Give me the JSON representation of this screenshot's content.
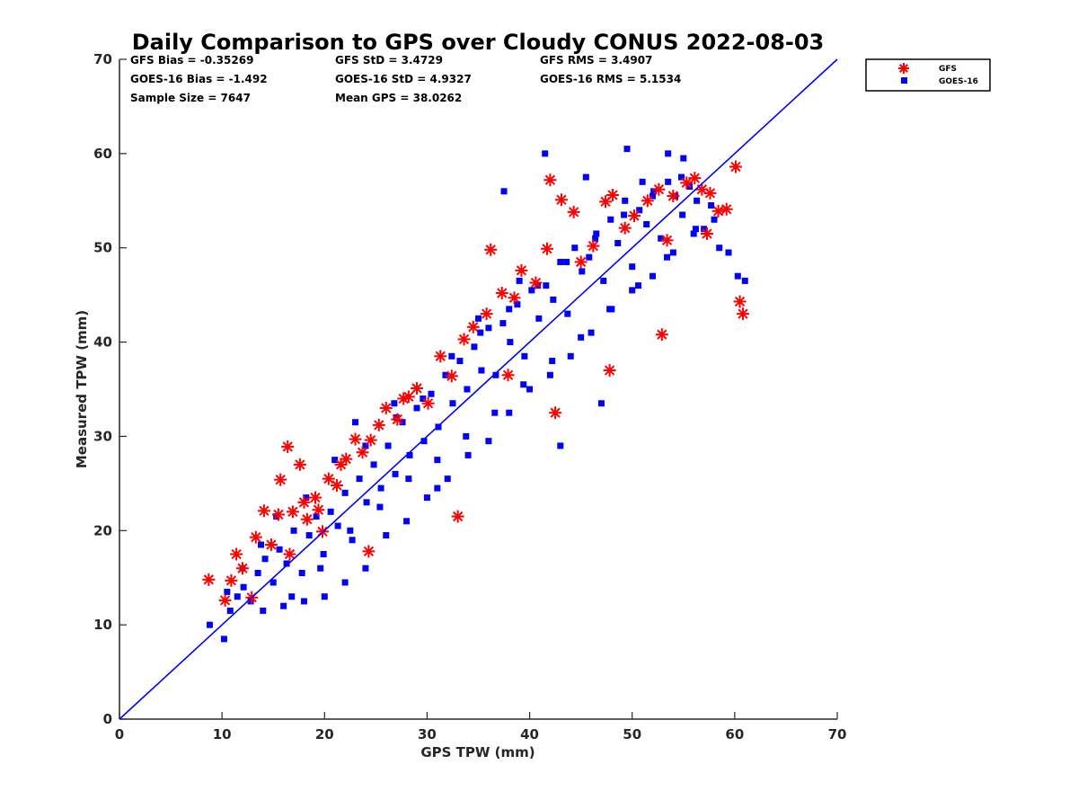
{
  "chart_data": {
    "type": "scatter",
    "title": "Daily Comparison to GPS over Cloudy CONUS 2022-08-03",
    "xlabel": "GPS TPW (mm)",
    "ylabel": "Measured TPW (mm)",
    "xlim": [
      0,
      70
    ],
    "ylim": [
      0,
      70
    ],
    "xticks": [
      "0",
      "10",
      "20",
      "30",
      "40",
      "50",
      "60",
      "70"
    ],
    "yticks": [
      "0",
      "10",
      "20",
      "30",
      "40",
      "50",
      "60",
      "70"
    ],
    "grid": false,
    "legend_position": "outside-top-right",
    "reference_line": {
      "x": [
        0,
        70
      ],
      "y": [
        0,
        70
      ],
      "color": "#0000ff"
    },
    "stats": {
      "gfs_bias": "GFS Bias = -0.35269",
      "gfs_std": "GFS StD = 3.4729",
      "gfs_rms": "GFS RMS = 3.4907",
      "goes_bias": "GOES-16 Bias = -1.492",
      "goes_std": "GOES-16 StD = 4.9327",
      "goes_rms": "GOES-16 RMS = 5.1534",
      "sample_size": "Sample Size = 7647",
      "mean_gps": "Mean GPS = 38.0262"
    },
    "series": [
      {
        "name": "GOES-16",
        "marker": "square",
        "color": "#0000ff",
        "x": [
          8.8,
          10.2,
          10.8,
          11.5,
          12.1,
          12.8,
          13.5,
          14.2,
          15.0,
          15.6,
          16.3,
          17.0,
          17.8,
          18.5,
          19.2,
          19.9,
          20.6,
          21.3,
          22.0,
          22.7,
          23.4,
          24.1,
          24.8,
          25.5,
          26.2,
          26.9,
          27.6,
          28.3,
          29.0,
          29.7,
          30.4,
          31.1,
          31.8,
          32.5,
          33.2,
          33.9,
          34.6,
          35.3,
          36.0,
          36.7,
          37.4,
          38.1,
          38.8,
          39.5,
          40.2,
          40.9,
          41.6,
          42.3,
          43.0,
          43.7,
          44.4,
          45.1,
          45.8,
          46.5,
          47.2,
          47.9,
          48.6,
          49.3,
          50.0,
          50.7,
          51.4,
          52.1,
          52.8,
          53.5,
          54.2,
          54.9,
          55.6,
          56.3,
          57.0,
          57.7,
          58.5,
          59.4,
          60.3,
          61.0,
          10.5,
          12.0,
          13.8,
          15.3,
          16.8,
          18.2,
          19.6,
          21.0,
          22.5,
          24.0,
          25.4,
          26.8,
          28.2,
          29.6,
          31.0,
          32.4,
          33.8,
          35.2,
          36.6,
          38.0,
          39.4,
          40.8,
          42.2,
          43.6,
          45.0,
          46.4,
          47.8,
          49.2,
          50.6,
          52.0,
          53.4,
          54.8,
          56.2,
          14.0,
          16.0,
          18.0,
          20.0,
          22.0,
          24.0,
          26.0,
          28.0,
          30.0,
          32.0,
          34.0,
          36.0,
          38.0,
          40.0,
          42.0,
          44.0,
          46.0,
          48.0,
          50.0,
          52.0,
          54.0,
          56.0,
          58.0,
          27.0,
          31.0,
          35.0,
          39.0,
          43.0,
          47.0,
          51.0,
          55.0,
          23.0,
          37.5,
          41.5,
          45.5,
          49.5,
          53.5
        ],
        "y": [
          10.0,
          8.5,
          11.5,
          13.0,
          14.0,
          12.5,
          15.5,
          17.0,
          14.5,
          18.0,
          16.5,
          20.0,
          15.5,
          19.5,
          21.5,
          17.5,
          22.0,
          20.5,
          24.0,
          19.0,
          25.5,
          23.0,
          27.0,
          24.5,
          29.0,
          26.0,
          31.5,
          28.0,
          33.0,
          29.5,
          34.5,
          31.0,
          36.5,
          33.5,
          38.0,
          35.0,
          39.5,
          37.0,
          41.5,
          36.5,
          42.0,
          40.0,
          44.0,
          38.5,
          45.5,
          42.5,
          46.0,
          44.5,
          48.5,
          43.0,
          50.0,
          47.5,
          49.0,
          51.5,
          46.5,
          53.0,
          50.5,
          55.0,
          48.0,
          54.0,
          52.5,
          56.0,
          51.0,
          57.0,
          55.5,
          53.5,
          56.5,
          55.0,
          52.0,
          54.5,
          50.0,
          49.5,
          47.0,
          46.5,
          13.5,
          16.0,
          18.5,
          21.5,
          13.0,
          23.5,
          16.0,
          27.5,
          20.0,
          29.0,
          22.5,
          33.5,
          25.5,
          34.0,
          27.5,
          38.5,
          30.0,
          41.0,
          32.5,
          43.5,
          35.5,
          46.0,
          38.0,
          48.5,
          40.5,
          51.0,
          43.5,
          53.5,
          46.0,
          55.5,
          49.0,
          57.5,
          52.0,
          11.5,
          12.0,
          12.5,
          13.0,
          14.5,
          16.0,
          19.5,
          21.0,
          23.5,
          25.5,
          28.0,
          29.5,
          32.5,
          35.0,
          36.5,
          38.5,
          41.0,
          43.5,
          45.5,
          47.0,
          49.5,
          51.5,
          53.0,
          32.0,
          24.5,
          42.5,
          46.5,
          29.0,
          33.5,
          57.0,
          59.5,
          31.5,
          56.0,
          60.0,
          57.5,
          60.5,
          60.0
        ]
      },
      {
        "name": "GFS",
        "marker": "asterisk",
        "color": "#ff0000",
        "x": [
          8.7,
          10.3,
          10.9,
          11.4,
          12.0,
          12.9,
          13.3,
          14.1,
          14.8,
          15.7,
          16.4,
          16.9,
          17.6,
          18.3,
          19.1,
          19.8,
          20.4,
          21.2,
          22.1,
          23.0,
          23.7,
          24.5,
          25.3,
          26.0,
          27.1,
          28.2,
          29.0,
          30.1,
          31.3,
          32.4,
          33.6,
          34.5,
          35.8,
          36.2,
          37.3,
          38.5,
          39.2,
          40.6,
          41.7,
          42.0,
          43.1,
          44.3,
          45.0,
          46.2,
          47.4,
          48.1,
          49.3,
          50.2,
          51.5,
          52.6,
          53.4,
          54.0,
          55.3,
          56.1,
          56.8,
          57.6,
          58.4,
          59.2,
          60.1,
          60.5,
          60.8,
          15.5,
          16.6,
          18.0,
          19.4,
          21.6,
          24.3,
          27.7,
          33.0,
          37.9,
          42.5,
          47.8,
          52.9,
          57.3
        ],
        "y": [
          14.8,
          12.6,
          14.7,
          17.5,
          16.0,
          12.9,
          19.3,
          22.1,
          18.5,
          25.4,
          28.9,
          22.0,
          27.0,
          21.2,
          23.5,
          19.9,
          25.5,
          24.8,
          27.6,
          29.7,
          28.3,
          29.6,
          31.2,
          33.0,
          31.8,
          34.2,
          35.1,
          33.5,
          38.5,
          36.4,
          40.3,
          41.6,
          43.0,
          49.8,
          45.2,
          44.7,
          47.6,
          46.3,
          49.9,
          57.2,
          55.1,
          53.8,
          48.5,
          50.2,
          54.9,
          55.6,
          52.1,
          53.4,
          55.0,
          56.2,
          50.8,
          55.5,
          56.9,
          57.4,
          56.2,
          55.8,
          53.9,
          54.1,
          58.6,
          44.3,
          43.0,
          21.7,
          17.5,
          23.0,
          22.2,
          27.0,
          17.8,
          34.0,
          21.5,
          36.5,
          32.5,
          37.0,
          40.8,
          51.5
        ]
      }
    ]
  }
}
